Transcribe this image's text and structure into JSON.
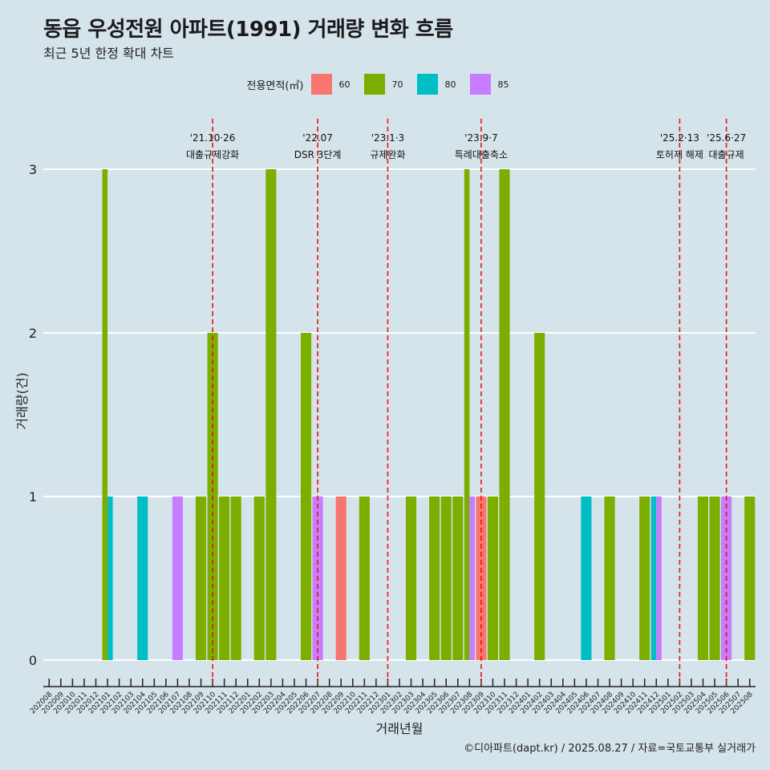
{
  "title": "동읍 우성전원 아파트(1991) 거래량 변화 흐름",
  "subtitle": "최근 5년 한정 확대 차트",
  "caption": "©디아파트(dapt.kr) / 2025.08.27 / 자료=국토교통부 실거래가",
  "legend": {
    "title": "전용면적(㎡)",
    "items": [
      {
        "label": "60",
        "color": "#F8766D"
      },
      {
        "label": "70",
        "color": "#7CAE00"
      },
      {
        "label": "80",
        "color": "#00BFC4"
      },
      {
        "label": "85",
        "color": "#C77CFF"
      }
    ]
  },
  "chart_data": {
    "type": "bar",
    "xlabel": "거래년월",
    "ylabel": "거래량(건)",
    "ylim": [
      0,
      3
    ],
    "yticks": [
      0,
      1,
      2,
      3
    ],
    "categories": [
      "202008",
      "202009",
      "202010",
      "202011",
      "202012",
      "202101",
      "202102",
      "202103",
      "202104",
      "202105",
      "202106",
      "202107",
      "202108",
      "202109",
      "202110",
      "202111",
      "202112",
      "202201",
      "202202",
      "202203",
      "202204",
      "202205",
      "202206",
      "202207",
      "202208",
      "202209",
      "202210",
      "202211",
      "202212",
      "202301",
      "202302",
      "202303",
      "202304",
      "202305",
      "202306",
      "202307",
      "202308",
      "202309",
      "202310",
      "202311",
      "202312",
      "202401",
      "202402",
      "202403",
      "202404",
      "202405",
      "202406",
      "202407",
      "202408",
      "202409",
      "202410",
      "202411",
      "202412",
      "202501",
      "202502",
      "202503",
      "202504",
      "202505",
      "202506",
      "202507",
      "202508"
    ],
    "series": [
      {
        "name": "60",
        "color": "#F8766D",
        "values": [
          0,
          0,
          0,
          0,
          0,
          0,
          0,
          0,
          0,
          0,
          0,
          0,
          0,
          0,
          0,
          0,
          0,
          0,
          0,
          0,
          0,
          0,
          0,
          0,
          0,
          1,
          0,
          0,
          0,
          0,
          0,
          0,
          0,
          0,
          0,
          0,
          0,
          1,
          0,
          0,
          0,
          0,
          0,
          0,
          0,
          0,
          0,
          0,
          0,
          0,
          0,
          0,
          0,
          0,
          0,
          0,
          0,
          0,
          0,
          0,
          0
        ]
      },
      {
        "name": "70",
        "color": "#7CAE00",
        "values": [
          0,
          0,
          0,
          0,
          0,
          3,
          0,
          0,
          0,
          0,
          0,
          0,
          0,
          1,
          2,
          1,
          1,
          0,
          1,
          3,
          0,
          0,
          2,
          0,
          0,
          0,
          0,
          1,
          0,
          0,
          0,
          1,
          0,
          1,
          1,
          1,
          3,
          0,
          1,
          3,
          0,
          0,
          2,
          0,
          0,
          0,
          0,
          0,
          1,
          0,
          0,
          1,
          0,
          0,
          0,
          0,
          1,
          1,
          0,
          0,
          1
        ]
      },
      {
        "name": "80",
        "color": "#00BFC4",
        "values": [
          0,
          0,
          0,
          0,
          0,
          1,
          0,
          0,
          1,
          0,
          0,
          0,
          0,
          0,
          0,
          0,
          0,
          0,
          0,
          0,
          0,
          0,
          0,
          0,
          0,
          0,
          0,
          0,
          0,
          0,
          0,
          0,
          0,
          0,
          0,
          0,
          0,
          0,
          0,
          0,
          0,
          0,
          0,
          0,
          0,
          0,
          1,
          0,
          0,
          0,
          0,
          0,
          1,
          0,
          0,
          0,
          0,
          0,
          0,
          0,
          0
        ]
      },
      {
        "name": "85",
        "color": "#C77CFF",
        "values": [
          0,
          0,
          0,
          0,
          0,
          0,
          0,
          0,
          0,
          0,
          0,
          1,
          0,
          0,
          0,
          0,
          0,
          0,
          0,
          0,
          0,
          0,
          0,
          1,
          0,
          0,
          0,
          0,
          0,
          0,
          0,
          0,
          0,
          0,
          0,
          0,
          1,
          0,
          0,
          0,
          0,
          0,
          0,
          0,
          0,
          0,
          0,
          0,
          0,
          0,
          0,
          0,
          1,
          0,
          0,
          0,
          0,
          0,
          1,
          0,
          0
        ]
      }
    ],
    "annotations": [
      {
        "at": "202110",
        "line1": "'21.10·26",
        "line2": "대출규제강화"
      },
      {
        "at": "202207",
        "line1": "'22.07",
        "line2": "DSR 3단계"
      },
      {
        "at": "202301",
        "line1": "'23.1·3",
        "line2": "규제완화"
      },
      {
        "at": "202309",
        "line1": "'23.9·7",
        "line2": "특례대출축소"
      },
      {
        "at": "202502",
        "line1": "'25.2·13",
        "line2": "토허제 해제"
      },
      {
        "at": "202506",
        "line1": "'25.6·27",
        "line2": "대출규제"
      }
    ]
  }
}
